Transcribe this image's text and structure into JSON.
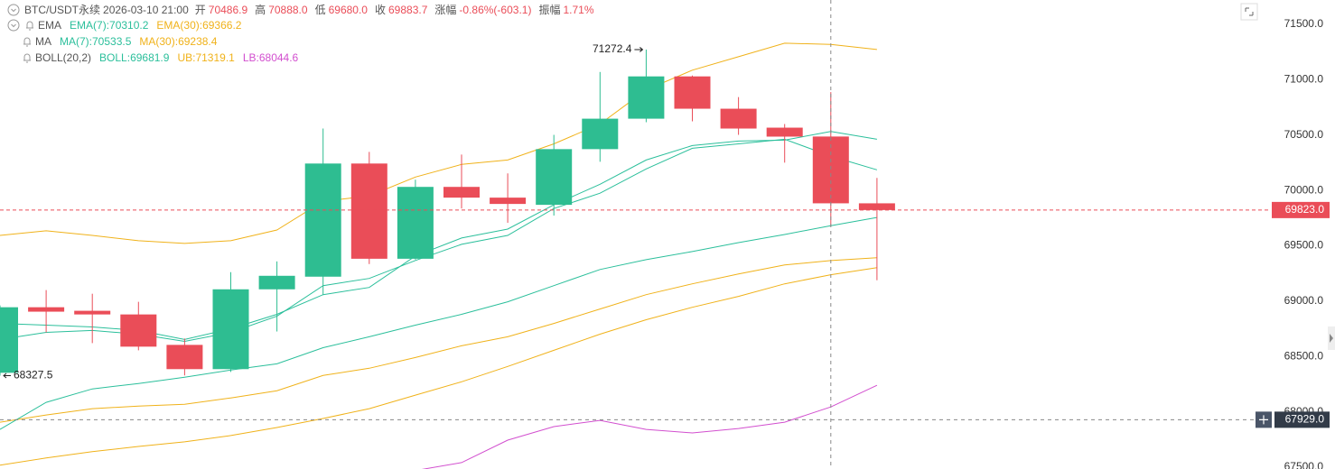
{
  "chart_data": {
    "type": "candlestick",
    "header": {
      "symbol": "BTC/USDT永续",
      "time": "2026-03-10 21:00",
      "fields": [
        {
          "label": "开",
          "value": "70486.9"
        },
        {
          "label": "高",
          "value": "70888.0"
        },
        {
          "label": "低",
          "value": "69680.0"
        },
        {
          "label": "收",
          "value": "69883.7"
        },
        {
          "label": "涨幅",
          "value": "-0.86%(-603.1)"
        },
        {
          "label": "振幅",
          "value": "1.71%"
        }
      ]
    },
    "legend_groups": [
      "EMA",
      "MA",
      "BOLL(20,2)"
    ],
    "up_color": "#2ebd91",
    "down_color": "#ea4d58",
    "open": [
      68353,
      68945,
      68913,
      68880,
      68605,
      68386,
      69107,
      69221,
      70243,
      69383,
      70032,
      69935,
      69870,
      70373,
      70648,
      71030,
      70738,
      70567,
      70486.9,
      69883.7
    ],
    "high": [
      68962,
      69100,
      69067,
      68994,
      68662,
      69262,
      69359,
      70559,
      70348,
      70097,
      70324,
      70154,
      70502,
      71070,
      71272.4,
      71038,
      70843,
      70600,
      70888.0,
      70113
    ],
    "low": [
      68327.5,
      68718,
      68621,
      68556,
      68329,
      68361,
      68726,
      69059,
      69335,
      69375,
      69837,
      69708,
      69773,
      70259,
      70616,
      70624,
      70502,
      70251,
      69680.0,
      69189
    ],
    "close": [
      68945,
      68905,
      68880,
      68589,
      68386,
      69107,
      69229,
      70243,
      69383,
      70032,
      69935,
      69878,
      70373,
      70648,
      71030,
      70738,
      70559,
      70486,
      69883.7,
      69823.0
    ],
    "series": [
      {
        "name": "EMA(7):70310.2",
        "group": 0,
        "color": "#2bbf9b",
        "values": [
          68654,
          68718,
          68735,
          68702,
          68637,
          68718,
          68864,
          69140,
          69205,
          69367,
          69513,
          69594,
          69837,
          69975,
          70194,
          70381,
          70421,
          70462,
          70310.2,
          70186
        ]
      },
      {
        "name": "EMA(30):69366.2",
        "group": 0,
        "color": "#f0b21a",
        "values": [
          67907,
          67972,
          68029,
          68053,
          68069,
          68126,
          68191,
          68329,
          68394,
          68491,
          68597,
          68678,
          68799,
          68929,
          69059,
          69156,
          69246,
          69327,
          69366.2,
          69392
        ]
      },
      {
        "name": "MA(7):70533.5",
        "group": 1,
        "color": "#2bbf9b",
        "values": [
          68799,
          68783,
          68767,
          68735,
          68654,
          68751,
          68881,
          69059,
          69124,
          69408,
          69570,
          69651,
          69870,
          70056,
          70275,
          70405,
          70446,
          70454,
          70533.5,
          70462
        ]
      },
      {
        "name": "MA(30):69238.4",
        "group": 1,
        "color": "#f0b21a",
        "values": [
          67518,
          67583,
          67640,
          67688,
          67729,
          67786,
          67859,
          67940,
          68029,
          68151,
          68272,
          68410,
          68556,
          68702,
          68832,
          68945,
          69043,
          69156,
          69238.4,
          69302
        ]
      },
      {
        "name": "BOLL:69681.9",
        "group": 2,
        "color": "#2bbf9b",
        "values": [
          67842,
          68086,
          68207,
          68256,
          68313,
          68378,
          68434,
          68580,
          68678,
          68783,
          68881,
          68994,
          69140,
          69286,
          69375,
          69448,
          69529,
          69602,
          69681.9,
          69756
        ]
      },
      {
        "name": "UB:71319.1",
        "group": 2,
        "color": "#f0b21a",
        "values": [
          69594,
          69635,
          69594,
          69546,
          69521,
          69546,
          69643,
          69902,
          69951,
          70121,
          70235,
          70275,
          70421,
          70600,
          70908,
          71086,
          71208,
          71330,
          71319.1,
          71273
        ]
      },
      {
        "name": "LB:68044.6",
        "group": 2,
        "color": "#d24fcf",
        "values": [
          null,
          null,
          null,
          null,
          null,
          null,
          null,
          null,
          null,
          67470,
          67542,
          67745,
          67867,
          67923,
          67842,
          67810,
          67850,
          67907,
          68044.6,
          68240
        ]
      }
    ],
    "annotations": [
      {
        "value": 71272.4,
        "label": "71272.4",
        "anchor": "high"
      },
      {
        "value": 68327.5,
        "label": "68327.5",
        "anchor": "low"
      }
    ],
    "last_price": {
      "value": 69823.0,
      "label": "69823.0"
    },
    "crosshair": {
      "value": 67929.0,
      "label": "67929.0"
    },
    "ylim": [
      67484,
      71720
    ],
    "yticks": [
      {
        "value": 67500,
        "label": "67500.0"
      },
      {
        "value": 68000,
        "label": "68000.0"
      },
      {
        "value": 68500,
        "label": "68500.0"
      },
      {
        "value": 69000,
        "label": "69000.0"
      },
      {
        "value": 69500,
        "label": "69500.0"
      },
      {
        "value": 70000,
        "label": "70000.0"
      },
      {
        "value": 70500,
        "label": "70500.0"
      },
      {
        "value": 71000,
        "label": "71000.0"
      },
      {
        "value": 71500,
        "label": "71500.0"
      }
    ],
    "grid": false
  }
}
